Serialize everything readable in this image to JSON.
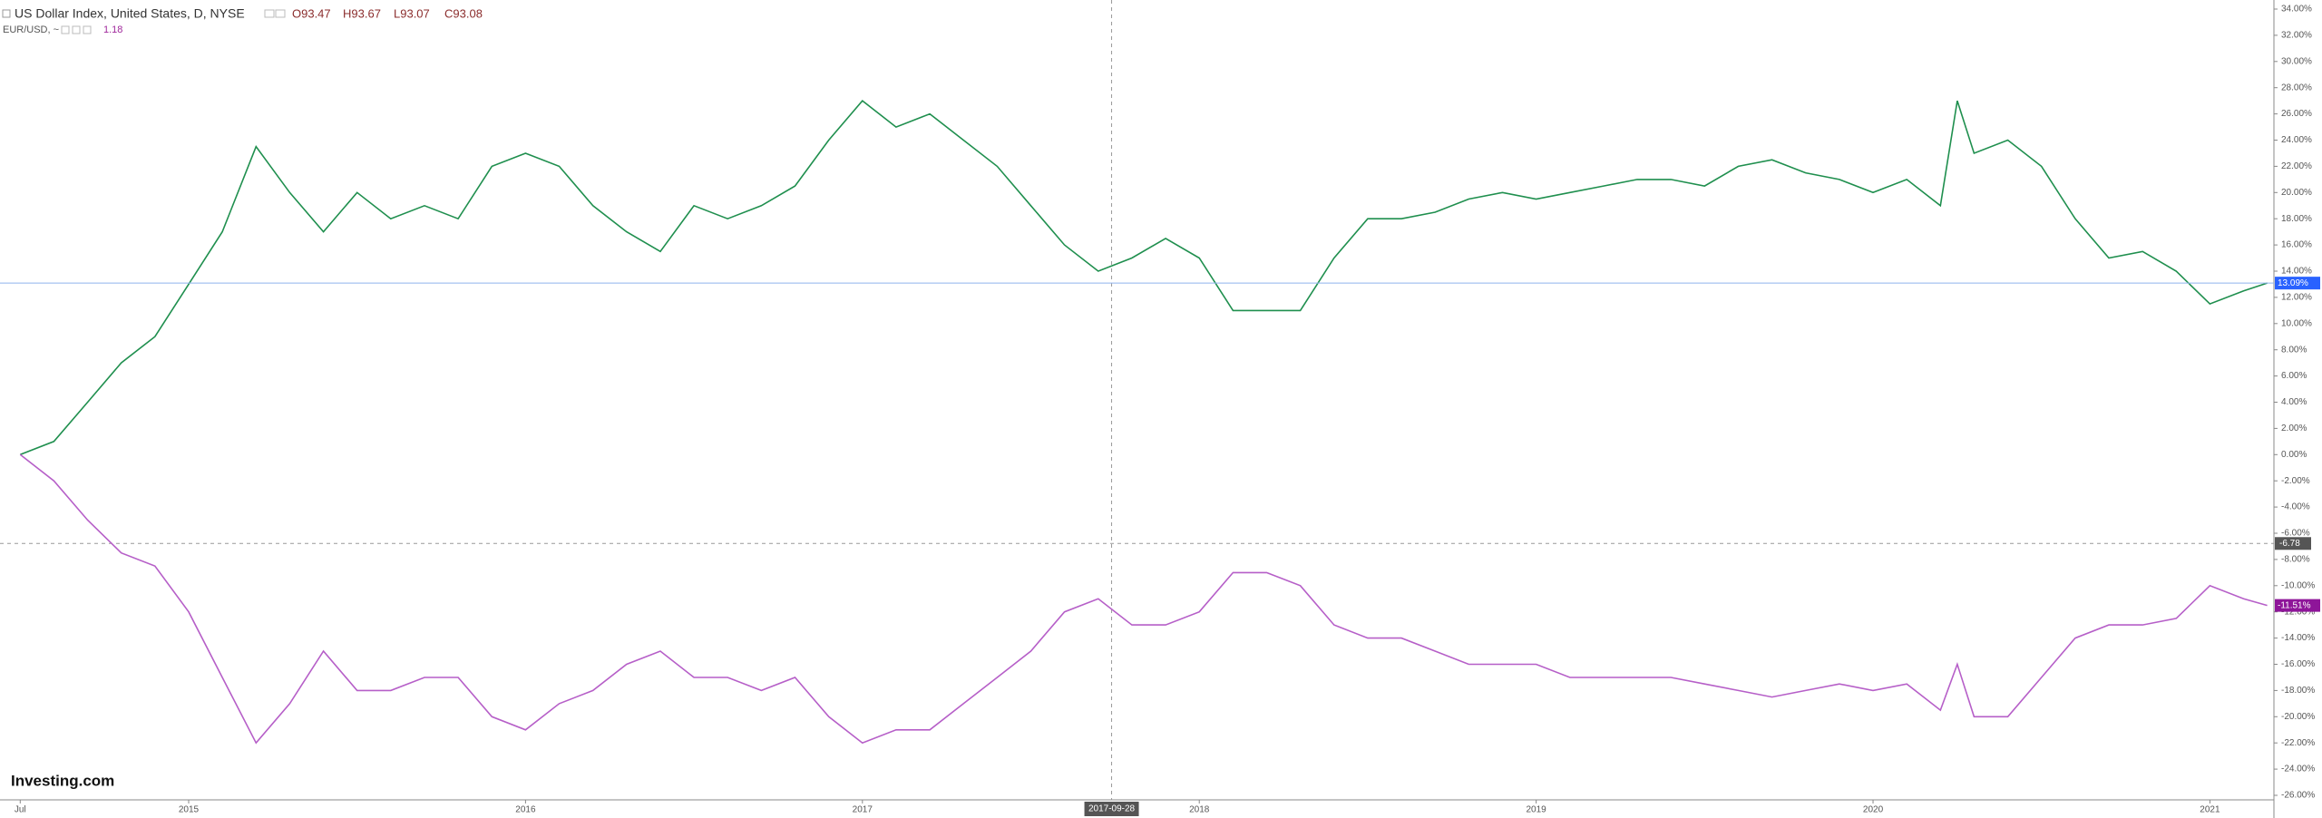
{
  "header": {
    "title": "US Dollar Index, United States, D, NYSE",
    "open": "O93.47",
    "high": "H93.67",
    "low": "L93.07",
    "close": "C93.08",
    "compare": "EUR/USD, ~",
    "compare_value": "1.18"
  },
  "logo": "Investing.com",
  "chart_data": {
    "type": "line",
    "x": [
      2014.5,
      2014.6,
      2014.7,
      2014.8,
      2014.9,
      2015.0,
      2015.1,
      2015.2,
      2015.3,
      2015.4,
      2015.5,
      2015.6,
      2015.7,
      2015.8,
      2015.9,
      2016.0,
      2016.1,
      2016.2,
      2016.3,
      2016.4,
      2016.5,
      2016.6,
      2016.7,
      2016.8,
      2016.9,
      2017.0,
      2017.1,
      2017.2,
      2017.3,
      2017.4,
      2017.5,
      2017.6,
      2017.7,
      2017.8,
      2017.9,
      2018.0,
      2018.1,
      2018.2,
      2018.3,
      2018.4,
      2018.5,
      2018.6,
      2018.7,
      2018.8,
      2018.9,
      2019.0,
      2019.1,
      2019.2,
      2019.3,
      2019.4,
      2019.5,
      2019.6,
      2019.7,
      2019.8,
      2019.9,
      2020.0,
      2020.1,
      2020.2,
      2020.25,
      2020.3,
      2020.4,
      2020.5,
      2020.6,
      2020.7,
      2020.8,
      2020.9,
      2021.0,
      2021.1,
      2021.17
    ],
    "series": [
      {
        "name": "US Dollar Index",
        "color": "#1f8f4e",
        "last_label": "13.09%",
        "label_color": "#2962ff",
        "values": [
          0,
          1,
          4,
          7,
          9,
          13,
          17,
          23.5,
          20,
          17,
          20,
          18,
          19,
          18,
          22,
          23,
          22,
          19,
          17,
          15.5,
          19,
          18,
          19,
          20.5,
          24,
          27,
          25,
          26,
          24,
          22,
          19,
          16,
          14,
          15,
          16.5,
          15,
          11,
          11,
          11,
          15,
          18,
          18,
          18.5,
          19.5,
          20,
          19.5,
          20,
          20.5,
          21,
          21,
          20.5,
          22,
          22.5,
          21.5,
          21,
          20,
          21,
          19,
          27,
          23,
          24,
          22,
          18,
          15,
          15.5,
          14,
          11.5,
          12.5,
          13.09
        ]
      },
      {
        "name": "EUR/USD",
        "color": "#b65fc8",
        "last_label": "-11.51%",
        "label_color": "#8e1599",
        "values": [
          0,
          -2,
          -5,
          -7.5,
          -8.5,
          -12,
          -17,
          -22,
          -19,
          -15,
          -18,
          -18,
          -17,
          -17,
          -20,
          -21,
          -19,
          -18,
          -16,
          -15,
          -17,
          -17,
          -18,
          -17,
          -20,
          -22,
          -21,
          -21,
          -19,
          -17,
          -15,
          -12,
          -11,
          -13,
          -13,
          -12,
          -9,
          -9,
          -10,
          -13,
          -14,
          -14,
          -15,
          -16,
          -16,
          -16,
          -17,
          -17,
          -17,
          -17,
          -17.5,
          -18,
          -18.5,
          -18,
          -17.5,
          -18,
          -17.5,
          -19.5,
          -16,
          -20,
          -20,
          -17,
          -14,
          -13,
          -13,
          -12.5,
          -10,
          -11,
          -11.51
        ]
      }
    ],
    "xlim": [
      2014.44,
      2021.19
    ],
    "xticks": [
      {
        "value": 2014.5,
        "label": "Jul"
      },
      2015,
      2016,
      2017,
      2018,
      2019,
      2020,
      2021
    ],
    "ylim": [
      -26,
      34
    ],
    "yticks": [
      {
        "value": 34,
        "label": "34.00%"
      },
      {
        "value": 32,
        "label": "32.00%"
      },
      {
        "value": 30,
        "label": "30.00%"
      },
      {
        "value": 28,
        "label": "28.00%"
      },
      {
        "value": 26,
        "label": "26.00%"
      },
      {
        "value": 24,
        "label": "24.00%"
      },
      {
        "value": 22,
        "label": "22.00%"
      },
      {
        "value": 20,
        "label": "20.00%"
      },
      {
        "value": 18,
        "label": "18.00%"
      },
      {
        "value": 16,
        "label": "16.00%"
      },
      {
        "value": 14,
        "label": "14.00%"
      },
      {
        "value": 12,
        "label": "12.00%"
      },
      {
        "value": 10,
        "label": "10.00%"
      },
      {
        "value": 8,
        "label": "8.00%"
      },
      {
        "value": 6,
        "label": "6.00%"
      },
      {
        "value": 4,
        "label": "4.00%"
      },
      {
        "value": 2,
        "label": "2.00%"
      },
      {
        "value": 0,
        "label": "0.00%"
      },
      {
        "value": -2,
        "label": "-2.00%"
      },
      {
        "value": -4,
        "label": "-4.00%"
      },
      {
        "value": -6,
        "label": "-6.00%"
      },
      {
        "value": -8,
        "label": "-8.00%"
      },
      {
        "value": -10,
        "label": "-10.00%"
      },
      {
        "value": -12,
        "label": "-12.00%"
      },
      {
        "value": -14,
        "label": "-14.00%"
      },
      {
        "value": -16,
        "label": "-16.00%"
      },
      {
        "value": -18,
        "label": "-18.00%"
      },
      {
        "value": -20,
        "label": "-20.00%"
      },
      {
        "value": -22,
        "label": "-22.00%"
      },
      {
        "value": -24,
        "label": "-24.00%"
      },
      {
        "value": -26,
        "label": "-26.00%"
      }
    ],
    "crosshair": {
      "x": "2017-09-28",
      "y": -6.78
    }
  }
}
